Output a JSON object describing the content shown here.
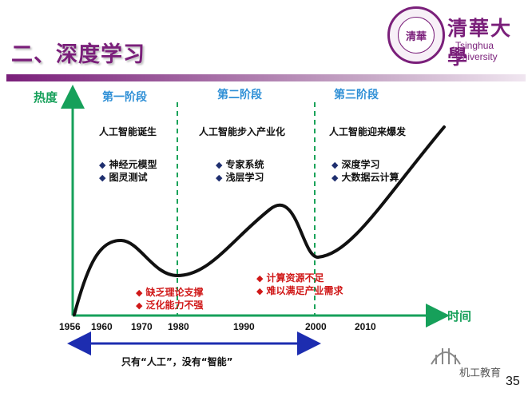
{
  "header": {
    "title": "二、深度学习",
    "logo": {
      "seal_text": "清華",
      "name_cn": "清華大學",
      "name_en": "Tsinghua University"
    }
  },
  "axes": {
    "y_label": "热度",
    "x_label": "时间",
    "years": [
      "1956",
      "1960",
      "1970",
      "1980",
      "1990",
      "2000",
      "2010"
    ]
  },
  "stages": [
    {
      "title": "第一阶段",
      "event": "人工智能诞生",
      "bullets": [
        "神经元模型",
        "图灵测试"
      ]
    },
    {
      "title": "第二阶段",
      "event": "人工智能步入产业化",
      "bullets": [
        "专家系统",
        "浅层学习"
      ]
    },
    {
      "title": "第三阶段",
      "event": "人工智能迎来爆发",
      "bullets": [
        "深度学习",
        "大数据云计算"
      ]
    }
  ],
  "setbacks": [
    {
      "bullets": [
        "缺乏理论支撑",
        "泛化能力不强"
      ]
    },
    {
      "bullets": [
        "计算资源不足",
        "难以满足产业需求"
      ]
    }
  ],
  "span_arrow": {
    "caption": "只有“人工”，没有“智能”"
  },
  "colors": {
    "axis": "#16a05a",
    "stage_title": "#2e8fd6",
    "divider": "#1aa35a",
    "curve": "#111111",
    "span_arrow": "#1d2db0",
    "warning": "#d01818",
    "brand": "#7a1f7a"
  },
  "footer": {
    "page_number": "35",
    "watermark": "机工教育"
  }
}
